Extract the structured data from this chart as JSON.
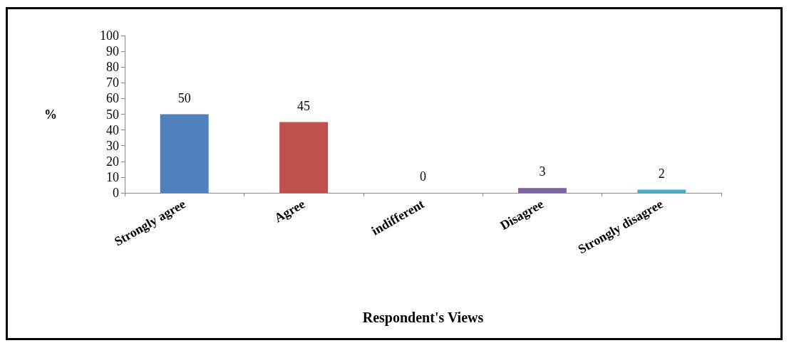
{
  "chart_data": {
    "type": "bar",
    "xlabel": "Respondent's Views",
    "ylabel": "%",
    "categories": [
      "Strongly agree",
      "Agree",
      "indifferent",
      "Disagree",
      "Strongly disagree"
    ],
    "values": [
      50,
      45,
      0,
      3,
      2
    ],
    "colors": [
      "#4f81bd",
      "#c0504d",
      "#9bbb59",
      "#8064a2",
      "#4bacc6"
    ],
    "ylim": [
      0,
      100
    ],
    "yticks": [
      0,
      10,
      20,
      30,
      40,
      50,
      60,
      70,
      80,
      90,
      100
    ],
    "data_labels": true
  }
}
